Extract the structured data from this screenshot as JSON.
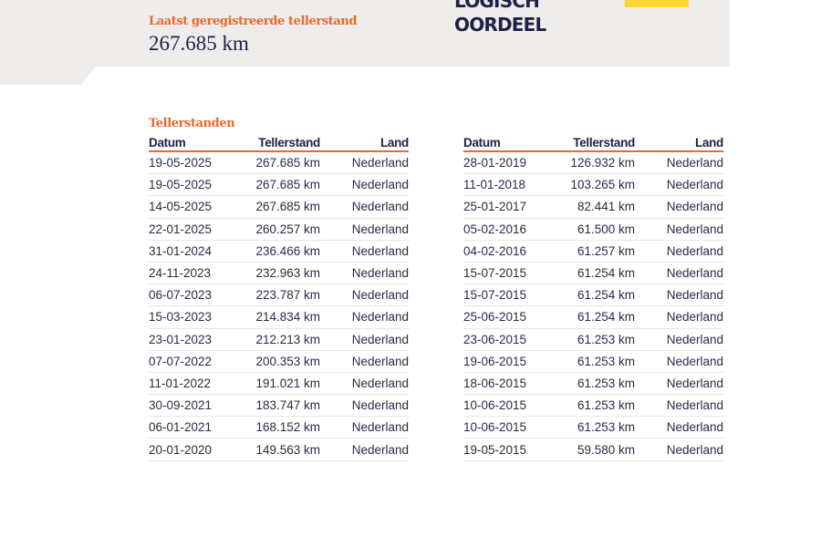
{
  "header": {
    "latest_label": "Laatst geregistreerde tellerstand",
    "latest_value": "267.685 km",
    "verdict_line1": "LOGISCH",
    "verdict_line2": "OORDEEL",
    "accent_color": "#e8692a",
    "badge_color": "#fdd835"
  },
  "section_title": "Tellerstanden",
  "columns": [
    "Datum",
    "Tellerstand",
    "Land"
  ],
  "left_rows": [
    [
      "19-05-2025",
      "267.685 km",
      "Nederland"
    ],
    [
      "19-05-2025",
      "267.685 km",
      "Nederland"
    ],
    [
      "14-05-2025",
      "267.685 km",
      "Nederland"
    ],
    [
      "22-01-2025",
      "260.257 km",
      "Nederland"
    ],
    [
      "31-01-2024",
      "236.466 km",
      "Nederland"
    ],
    [
      "24-11-2023",
      "232.963 km",
      "Nederland"
    ],
    [
      "06-07-2023",
      "223.787 km",
      "Nederland"
    ],
    [
      "15-03-2023",
      "214.834 km",
      "Nederland"
    ],
    [
      "23-01-2023",
      "212.213 km",
      "Nederland"
    ],
    [
      "07-07-2022",
      "200.353 km",
      "Nederland"
    ],
    [
      "11-01-2022",
      "191.021 km",
      "Nederland"
    ],
    [
      "30-09-2021",
      "183.747 km",
      "Nederland"
    ],
    [
      "06-01-2021",
      "168.152 km",
      "Nederland"
    ],
    [
      "20-01-2020",
      "149.563 km",
      "Nederland"
    ]
  ],
  "right_rows": [
    [
      "28-01-2019",
      "126.932 km",
      "Nederland"
    ],
    [
      "11-01-2018",
      "103.265 km",
      "Nederland"
    ],
    [
      "25-01-2017",
      "82.441 km",
      "Nederland"
    ],
    [
      "05-02-2016",
      "61.500 km",
      "Nederland"
    ],
    [
      "04-02-2016",
      "61.257 km",
      "Nederland"
    ],
    [
      "15-07-2015",
      "61.254 km",
      "Nederland"
    ],
    [
      "15-07-2015",
      "61.254 km",
      "Nederland"
    ],
    [
      "25-06-2015",
      "61.254 km",
      "Nederland"
    ],
    [
      "23-06-2015",
      "61.253 km",
      "Nederland"
    ],
    [
      "19-06-2015",
      "61.253 km",
      "Nederland"
    ],
    [
      "18-06-2015",
      "61.253 km",
      "Nederland"
    ],
    [
      "10-06-2015",
      "61.253 km",
      "Nederland"
    ],
    [
      "10-06-2015",
      "61.253 km",
      "Nederland"
    ],
    [
      "19-05-2015",
      "59.580 km",
      "Nederland"
    ]
  ]
}
